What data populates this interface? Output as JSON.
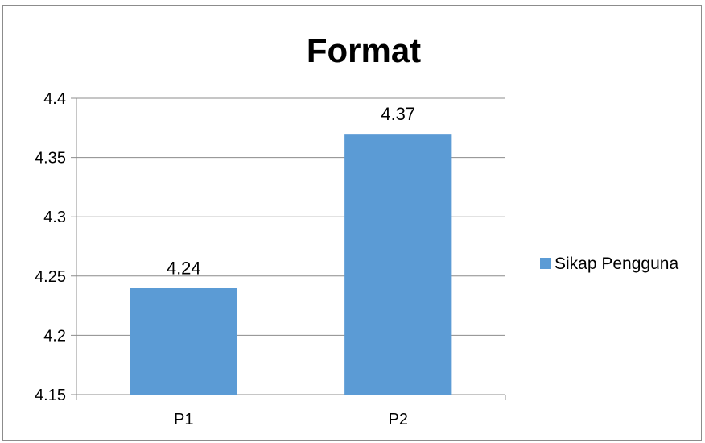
{
  "chart_data": {
    "type": "bar",
    "title": "Format",
    "xlabel": "",
    "ylabel": "",
    "categories": [
      "P1",
      "P2"
    ],
    "series": [
      {
        "name": "Sikap Pengguna",
        "values": [
          4.24,
          4.37
        ],
        "data_labels": [
          "4.24",
          "4.37"
        ]
      }
    ],
    "ylim": [
      4.15,
      4.4
    ],
    "yticks": [
      "4.15",
      "4.2",
      "4.25",
      "4.3",
      "4.35",
      "4.4"
    ],
    "grid": true,
    "legend": "right",
    "colors": {
      "bar": "#5B9BD5",
      "grid": "#8c8c8c",
      "axis": "#8c8c8c"
    }
  }
}
